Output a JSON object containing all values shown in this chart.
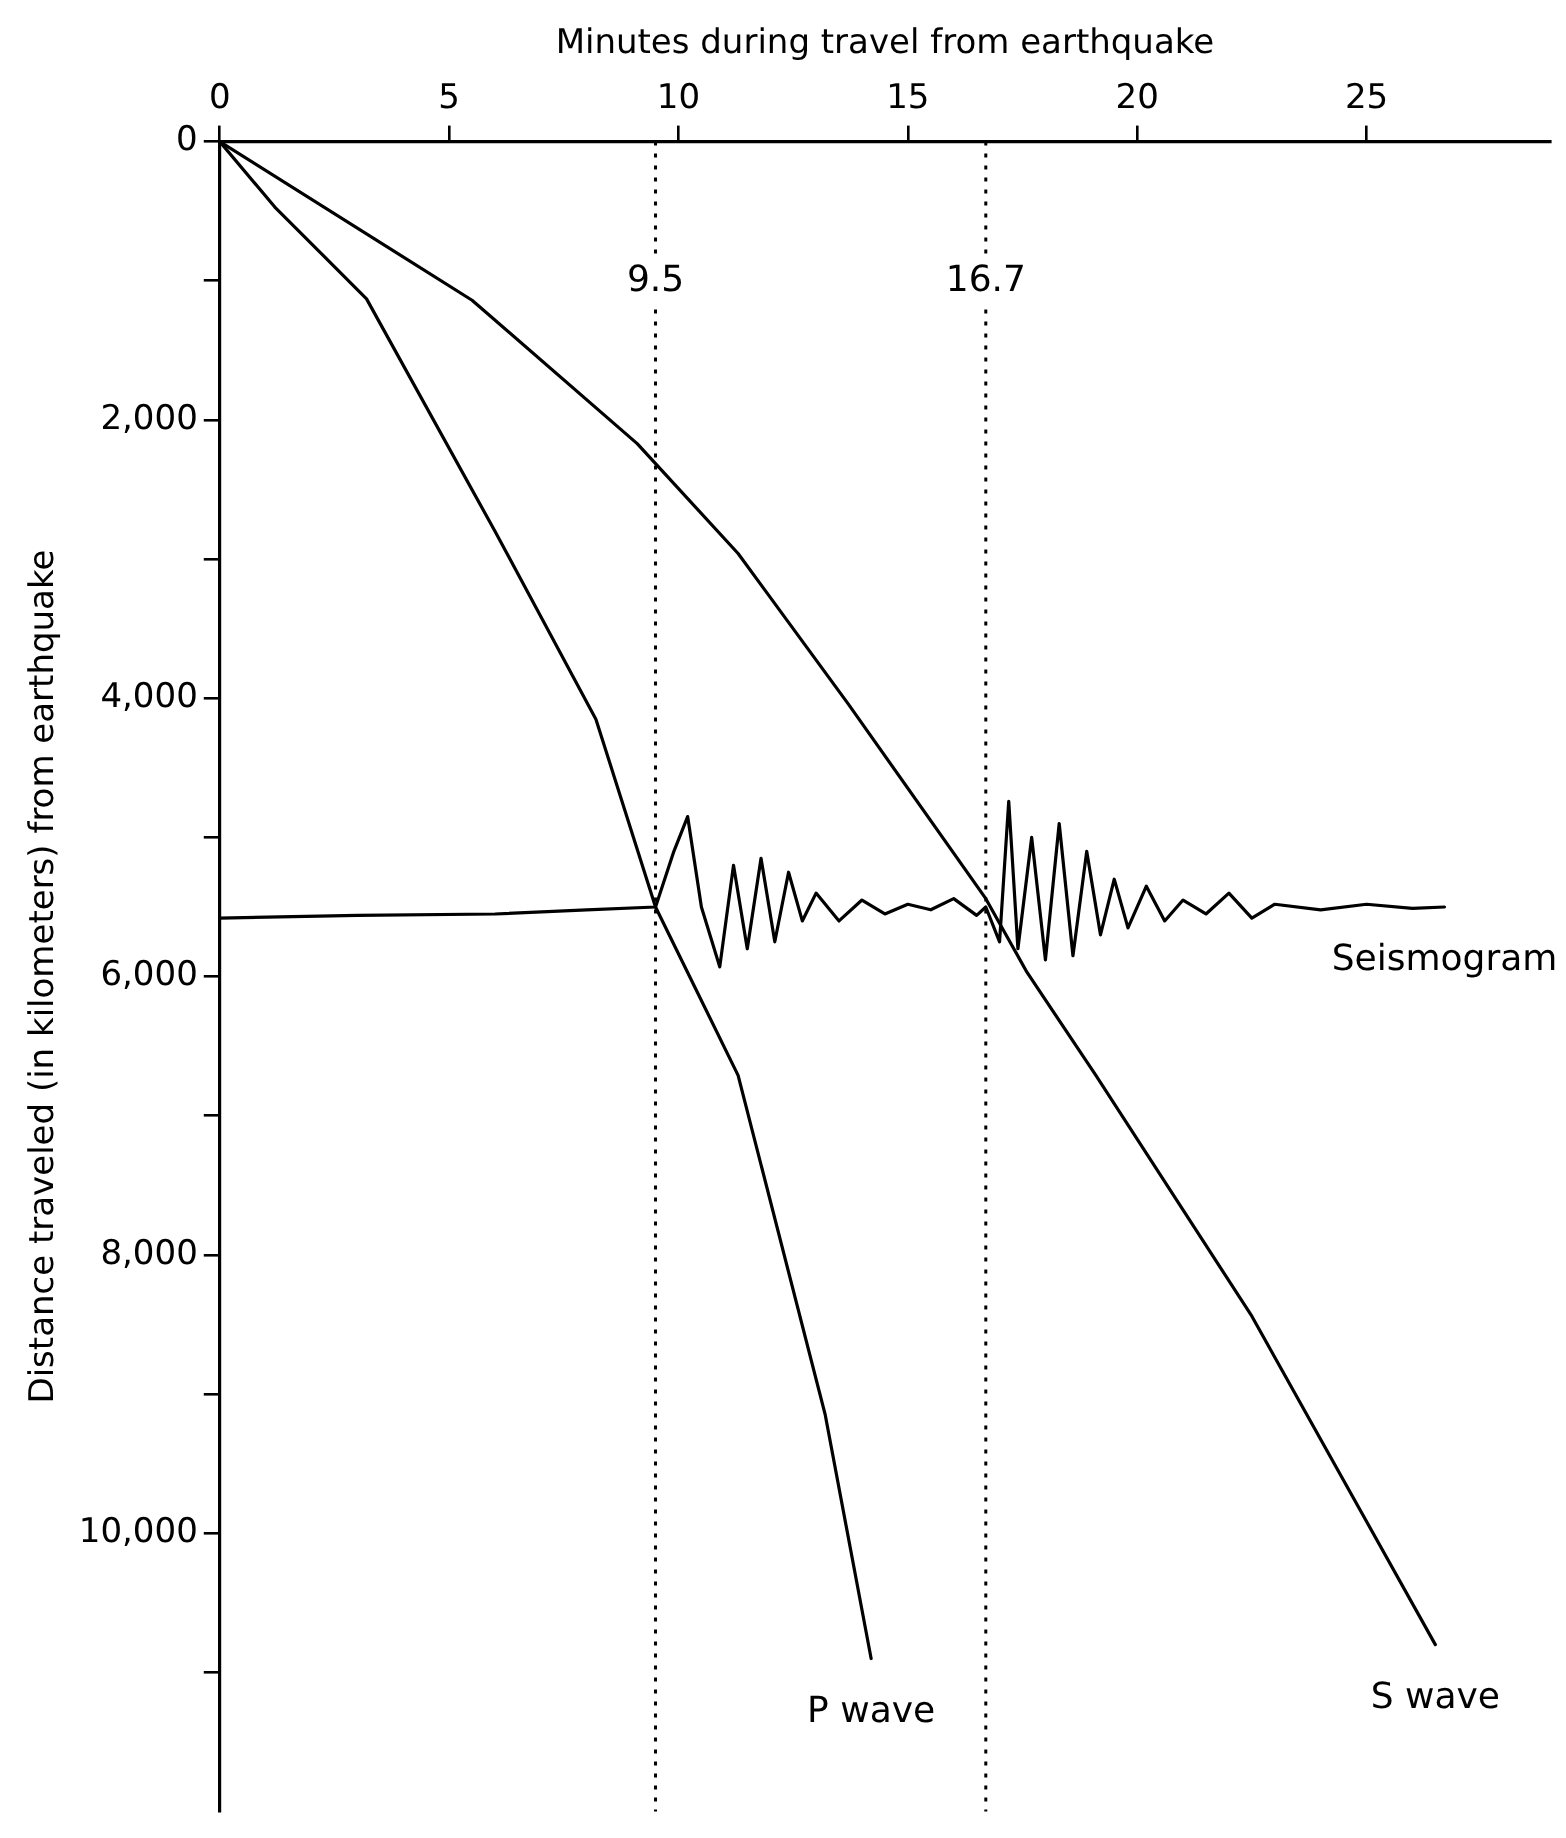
{
  "chart_data": {
    "type": "line",
    "xlabel": "Minutes during travel from earthquake",
    "ylabel": "Distance traveled (in kilometers) from earthquake",
    "xlim": [
      0,
      29
    ],
    "xticks": [
      0,
      5,
      10,
      15,
      20,
      25
    ],
    "ylim": [
      12000,
      0
    ],
    "yticks": [
      0,
      {
        "value": 1000,
        "label": null
      },
      {
        "value": 2000,
        "label": "2,000"
      },
      {
        "value": 3000,
        "label": null
      },
      {
        "value": 4000,
        "label": "4,000"
      },
      {
        "value": 5000,
        "label": null
      },
      {
        "value": 6000,
        "label": "6,000"
      },
      {
        "value": 7000,
        "label": null
      },
      {
        "value": 8000,
        "label": "8,000"
      },
      {
        "value": 9000,
        "label": null
      },
      {
        "value": 10000,
        "label": "10,000"
      },
      {
        "value": 11000,
        "label": null
      }
    ],
    "series": [
      {
        "name": "P wave",
        "color": "#000000",
        "x": [
          0,
          1.2,
          3.2,
          6.0,
          8.2,
          9.5,
          10.2,
          11.3,
          13.2,
          14.2
        ],
        "values": [
          0,
          470,
          1130,
          2800,
          4150,
          5500,
          5970,
          6710,
          9150,
          10900
        ]
      },
      {
        "name": "S wave",
        "color": "#000000",
        "x": [
          0,
          5.5,
          9.1,
          11.3,
          13.7,
          16.7,
          17.6,
          19.1,
          22.5,
          26.5
        ],
        "values": [
          0,
          1140,
          2170,
          2960,
          4040,
          5440,
          5970,
          6710,
          8440,
          10800
        ]
      },
      {
        "name": "Seismogram",
        "color": "#000000",
        "x": [
          0,
          3,
          6,
          8,
          9.5,
          9.9,
          10.2,
          10.5,
          10.9,
          11.2,
          11.5,
          11.8,
          12.1,
          12.4,
          12.7,
          13,
          13.5,
          14,
          14.5,
          15,
          15.5,
          16,
          16.5,
          16.7,
          17.0,
          17.2,
          17.4,
          17.7,
          18.0,
          18.3,
          18.6,
          18.9,
          19.2,
          19.5,
          19.8,
          20.2,
          20.6,
          21,
          21.5,
          22,
          22.5,
          23,
          24,
          25,
          26,
          26.7
        ],
        "values": [
          5580,
          5560,
          5550,
          5520,
          5500,
          5100,
          4850,
          5500,
          5930,
          5200,
          5800,
          5150,
          5750,
          5250,
          5600,
          5400,
          5600,
          5450,
          5550,
          5480,
          5520,
          5440,
          5560,
          5500,
          5750,
          4740,
          5800,
          5000,
          5880,
          4900,
          5850,
          5100,
          5700,
          5300,
          5650,
          5350,
          5600,
          5450,
          5550,
          5400,
          5580,
          5480,
          5520,
          5480,
          5510,
          5500
        ]
      }
    ],
    "ref_lines": [
      {
        "axis": "x",
        "value": 9.5,
        "label": "9.5",
        "line_style": "dotted"
      },
      {
        "axis": "x",
        "value": 16.7,
        "label": "16.7",
        "line_style": "dotted"
      }
    ],
    "grid": false,
    "legend": false,
    "marker": "none",
    "line_style": "solid"
  }
}
